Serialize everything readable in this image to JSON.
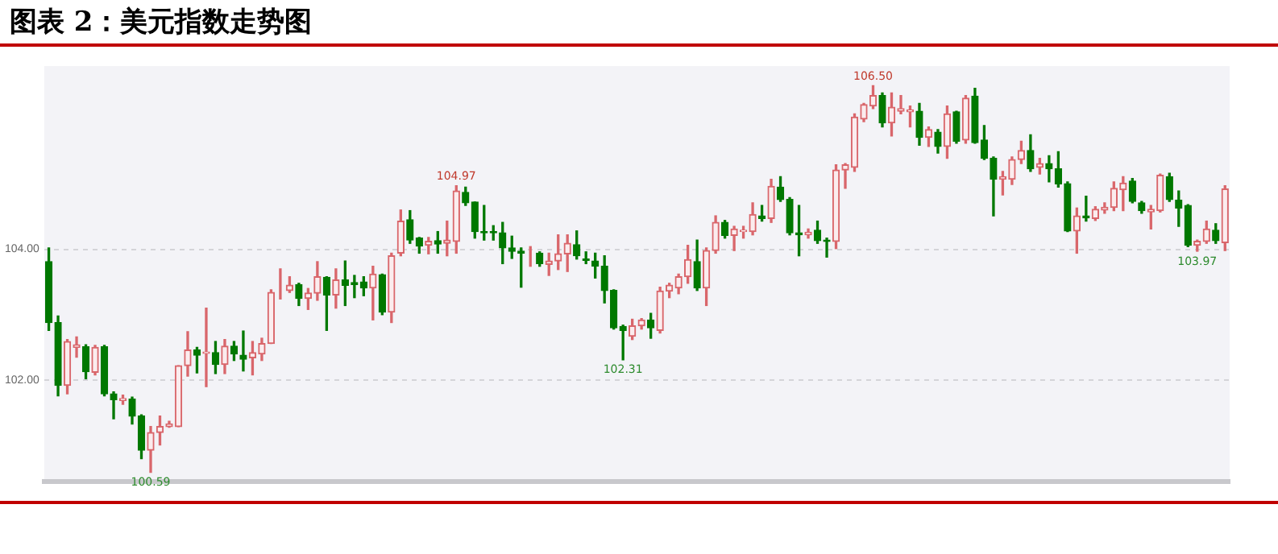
{
  "chart_data": {
    "type": "candlestick",
    "title": "图表 2：美元指数走势图",
    "categories": [
      null,
      null,
      null,
      null,
      null,
      null,
      null,
      null,
      null,
      null,
      null,
      null,
      null,
      null,
      null,
      null,
      null,
      null,
      null,
      null,
      null,
      null,
      null,
      null,
      null,
      null,
      null,
      null,
      null,
      null,
      null,
      null,
      null,
      null,
      null,
      null,
      null,
      null,
      null,
      null,
      null,
      null,
      null,
      null,
      null,
      null,
      null,
      null,
      null,
      null,
      null,
      null,
      null,
      null,
      null,
      null,
      null,
      null,
      null,
      null,
      null,
      null,
      null,
      null,
      null,
      null,
      null,
      null,
      null,
      null,
      null,
      null,
      null,
      null,
      null,
      null,
      null,
      null,
      null,
      null,
      null,
      null,
      null,
      null,
      null,
      null,
      null,
      null,
      null,
      null,
      null,
      null,
      null,
      null,
      null,
      null,
      null,
      null,
      null,
      null,
      null,
      null,
      null,
      null,
      null,
      null,
      null,
      null,
      null,
      null,
      null,
      null,
      null,
      null,
      null,
      null,
      null,
      null,
      null,
      null,
      null,
      null,
      null,
      null,
      null,
      null,
      null,
      null
    ],
    "ohlc": [
      [
        103.81,
        104.02,
        102.76,
        102.88
      ],
      [
        102.88,
        102.98,
        101.76,
        101.92
      ],
      [
        101.92,
        102.62,
        101.79,
        102.59
      ],
      [
        102.5,
        102.66,
        102.35,
        102.54
      ],
      [
        102.51,
        102.54,
        102.02,
        102.13
      ],
      [
        102.12,
        102.53,
        102.08,
        102.5
      ],
      [
        102.51,
        102.53,
        101.76,
        101.79
      ],
      [
        101.79,
        101.82,
        101.41,
        101.7
      ],
      [
        101.69,
        101.77,
        101.63,
        101.72
      ],
      [
        101.71,
        101.74,
        101.33,
        101.45
      ],
      [
        101.45,
        101.47,
        100.8,
        100.93
      ],
      [
        100.93,
        101.29,
        100.59,
        101.2
      ],
      [
        101.2,
        101.45,
        101.01,
        101.29
      ],
      [
        101.29,
        101.37,
        101.28,
        101.33
      ],
      [
        101.29,
        102.22,
        101.29,
        102.22
      ],
      [
        102.22,
        102.74,
        102.06,
        102.46
      ],
      [
        102.46,
        102.5,
        102.11,
        102.38
      ],
      [
        102.41,
        103.1,
        101.9,
        102.43
      ],
      [
        102.42,
        102.59,
        102.1,
        102.24
      ],
      [
        102.24,
        102.62,
        102.1,
        102.52
      ],
      [
        102.52,
        102.59,
        102.3,
        102.4
      ],
      [
        102.38,
        102.75,
        102.14,
        102.32
      ],
      [
        102.34,
        102.59,
        102.08,
        102.42
      ],
      [
        102.4,
        102.64,
        102.3,
        102.56
      ],
      [
        102.56,
        103.38,
        102.56,
        103.34
      ],
      [
        103.37,
        103.7,
        103.24,
        103.37
      ],
      [
        103.37,
        103.58,
        103.34,
        103.45
      ],
      [
        103.46,
        103.48,
        103.14,
        103.25
      ],
      [
        103.25,
        103.4,
        103.08,
        103.33
      ],
      [
        103.33,
        103.81,
        103.22,
        103.58
      ],
      [
        103.57,
        103.58,
        102.76,
        103.3
      ],
      [
        103.3,
        103.7,
        103.1,
        103.53
      ],
      [
        103.53,
        103.82,
        103.14,
        103.45
      ],
      [
        103.49,
        103.6,
        103.26,
        103.46
      ],
      [
        103.5,
        103.58,
        103.29,
        103.41
      ],
      [
        103.41,
        103.74,
        102.92,
        103.62
      ],
      [
        103.61,
        103.62,
        103.0,
        103.04
      ],
      [
        103.04,
        103.94,
        102.88,
        103.9
      ],
      [
        103.94,
        104.6,
        103.9,
        104.43
      ],
      [
        104.45,
        104.59,
        104.09,
        104.14
      ],
      [
        104.17,
        104.18,
        103.94,
        104.05
      ],
      [
        104.06,
        104.18,
        103.93,
        104.12
      ],
      [
        104.13,
        104.27,
        103.94,
        104.08
      ],
      [
        104.09,
        104.43,
        103.9,
        104.14
      ],
      [
        104.12,
        104.97,
        103.94,
        104.89
      ],
      [
        104.87,
        104.95,
        104.67,
        104.71
      ],
      [
        104.72,
        104.72,
        104.17,
        104.27
      ],
      [
        104.27,
        104.67,
        104.14,
        104.25
      ],
      [
        104.27,
        104.36,
        104.14,
        104.25
      ],
      [
        104.25,
        104.41,
        103.78,
        104.02
      ],
      [
        104.02,
        104.2,
        103.86,
        103.97
      ],
      [
        103.97,
        104.02,
        103.42,
        103.94
      ],
      [
        103.95,
        104.04,
        103.74,
        103.95
      ],
      [
        103.94,
        103.96,
        103.74,
        103.78
      ],
      [
        103.77,
        103.94,
        103.6,
        103.82
      ],
      [
        103.82,
        104.22,
        103.69,
        103.93
      ],
      [
        103.93,
        104.22,
        103.66,
        104.09
      ],
      [
        104.07,
        104.28,
        103.85,
        103.9
      ],
      [
        103.85,
        103.96,
        103.78,
        103.83
      ],
      [
        103.82,
        103.94,
        103.56,
        103.74
      ],
      [
        103.74,
        103.9,
        103.18,
        103.37
      ],
      [
        103.37,
        103.38,
        102.78,
        102.8
      ],
      [
        102.82,
        102.84,
        102.31,
        102.76
      ],
      [
        102.67,
        102.93,
        102.62,
        102.83
      ],
      [
        102.83,
        102.94,
        102.78,
        102.92
      ],
      [
        102.92,
        103.02,
        102.64,
        102.8
      ],
      [
        102.76,
        103.42,
        102.72,
        103.36
      ],
      [
        103.36,
        103.48,
        103.26,
        103.45
      ],
      [
        103.41,
        103.62,
        103.32,
        103.58
      ],
      [
        103.58,
        104.06,
        103.48,
        103.84
      ],
      [
        103.81,
        104.14,
        103.37,
        103.41
      ],
      [
        103.41,
        104.02,
        103.14,
        103.98
      ],
      [
        103.98,
        104.51,
        103.94,
        104.41
      ],
      [
        104.41,
        104.44,
        104.17,
        104.21
      ],
      [
        104.21,
        104.35,
        103.98,
        104.31
      ],
      [
        104.27,
        104.35,
        104.17,
        104.29
      ],
      [
        104.27,
        104.71,
        104.22,
        104.53
      ],
      [
        104.51,
        104.67,
        104.43,
        104.47
      ],
      [
        104.47,
        105.07,
        104.41,
        104.96
      ],
      [
        104.95,
        105.11,
        104.73,
        104.76
      ],
      [
        104.76,
        104.79,
        104.22,
        104.25
      ],
      [
        104.25,
        104.67,
        103.9,
        104.22
      ],
      [
        104.22,
        104.31,
        104.17,
        104.26
      ],
      [
        104.29,
        104.43,
        104.09,
        104.13
      ],
      [
        104.14,
        104.17,
        103.88,
        104.12
      ],
      [
        104.12,
        105.29,
        104.01,
        105.21
      ],
      [
        105.21,
        105.31,
        104.93,
        105.29
      ],
      [
        105.25,
        106.07,
        105.19,
        106.02
      ],
      [
        105.99,
        106.23,
        105.95,
        106.21
      ],
      [
        106.19,
        106.5,
        106.15,
        106.35
      ],
      [
        106.35,
        106.39,
        105.87,
        105.93
      ],
      [
        105.93,
        106.39,
        105.73,
        106.17
      ],
      [
        106.11,
        106.35,
        106.07,
        106.15
      ],
      [
        106.1,
        106.19,
        105.87,
        106.13
      ],
      [
        106.11,
        106.23,
        105.59,
        105.71
      ],
      [
        105.71,
        105.87,
        105.57,
        105.83
      ],
      [
        105.79,
        105.83,
        105.47,
        105.57
      ],
      [
        105.57,
        106.19,
        105.39,
        106.07
      ],
      [
        106.1,
        106.11,
        105.62,
        105.65
      ],
      [
        105.67,
        106.35,
        105.62,
        106.31
      ],
      [
        106.34,
        106.46,
        105.62,
        105.63
      ],
      [
        105.67,
        105.89,
        105.37,
        105.39
      ],
      [
        105.39,
        105.41,
        104.51,
        105.07
      ],
      [
        105.07,
        105.19,
        104.83,
        105.11
      ],
      [
        105.07,
        105.41,
        104.99,
        105.37
      ],
      [
        105.37,
        105.65,
        105.31,
        105.51
      ],
      [
        105.51,
        105.75,
        105.19,
        105.23
      ],
      [
        105.25,
        105.39,
        105.15,
        105.31
      ],
      [
        105.31,
        105.43,
        105.03,
        105.23
      ],
      [
        105.23,
        105.49,
        104.95,
        105.0
      ],
      [
        105.0,
        105.03,
        104.27,
        104.28
      ],
      [
        104.28,
        104.63,
        103.94,
        104.51
      ],
      [
        104.51,
        104.81,
        104.43,
        104.48
      ],
      [
        104.47,
        104.65,
        104.44,
        104.61
      ],
      [
        104.6,
        104.71,
        104.55,
        104.64
      ],
      [
        104.64,
        105.03,
        104.59,
        104.93
      ],
      [
        104.91,
        105.11,
        104.59,
        105.01
      ],
      [
        105.04,
        105.08,
        104.71,
        104.73
      ],
      [
        104.71,
        104.73,
        104.55,
        104.59
      ],
      [
        104.57,
        104.67,
        104.31,
        104.61
      ],
      [
        104.59,
        105.15,
        104.57,
        105.13
      ],
      [
        105.11,
        105.16,
        104.73,
        104.76
      ],
      [
        104.75,
        104.89,
        104.35,
        104.63
      ],
      [
        104.67,
        104.68,
        104.04,
        104.06
      ],
      [
        104.06,
        104.14,
        103.97,
        104.12
      ],
      [
        104.12,
        104.43,
        104.09,
        104.31
      ],
      [
        104.29,
        104.39,
        104.09,
        104.13
      ],
      [
        104.1,
        104.97,
        103.98,
        104.92
      ]
    ],
    "ylim": [
      100.45,
      106.8
    ],
    "yticks": [
      {
        "value": 102,
        "label": "102.00"
      },
      {
        "value": 104,
        "label": "104.00"
      }
    ],
    "grid": "y",
    "legend": false,
    "annotations": [
      {
        "text": "104.97",
        "y": 104.97
      },
      {
        "text": "100.59",
        "y": 100.59
      },
      {
        "text": "102.31",
        "y": 102.31
      },
      {
        "text": "106.50",
        "y": 106.5
      },
      {
        "text": "103.97",
        "y": 103.97
      }
    ]
  }
}
